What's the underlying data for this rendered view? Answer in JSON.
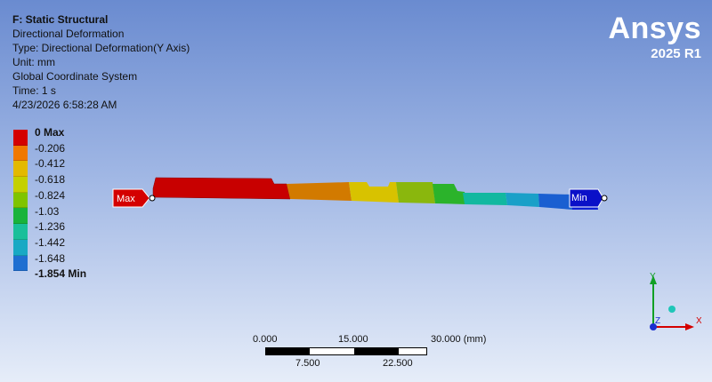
{
  "header": {
    "analysis_title": "F: Static Structural",
    "result_name": "Directional Deformation",
    "type": "Type: Directional Deformation(Y Axis)",
    "unit": "Unit: mm",
    "coordinate_system": "Global Coordinate System",
    "time": "Time: 1 s",
    "timestamp": "4/23/2026 6:58:28 AM"
  },
  "brand": {
    "logo": "Ansys",
    "version": "2025 R1"
  },
  "legend": {
    "labels": [
      "0 Max",
      "-0.206",
      "-0.412",
      "-0.618",
      "-0.824",
      "-1.03",
      "-1.236",
      "-1.442",
      "-1.648",
      "-1.854 Min"
    ],
    "colors": [
      "#d40000",
      "#f07800",
      "#e3b900",
      "#c4d000",
      "#7fc400",
      "#19b33b",
      "#1abf9a",
      "#18a9c4",
      "#1f6fd1",
      "#0d1fd4"
    ]
  },
  "probes": {
    "max_label": "Max",
    "min_label": "Min"
  },
  "scale_bar": {
    "top_labels": [
      "0.000",
      "15.000",
      "30.000 (mm)"
    ],
    "bottom_labels": [
      "7.500",
      "22.500"
    ]
  },
  "triad": {
    "y_label": "Y",
    "z_label": "Z",
    "x_label": "X"
  }
}
